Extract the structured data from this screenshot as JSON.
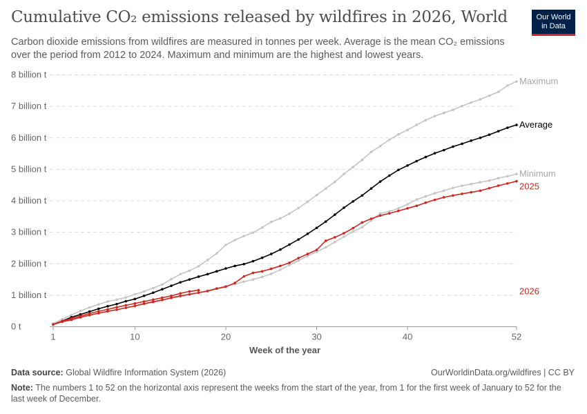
{
  "title": "Cumulative CO₂ emissions released by wildfires in 2026, World",
  "subtitle": "Carbon dioxide emissions from wildfires are measured in tonnes per week. Average is the mean CO₂ emissions over the period from 2012 to 2024. Maximum and minimum are the highest and lowest years.",
  "logo": {
    "line1": "Our World",
    "line2": "in Data",
    "bg": "#002147",
    "accent": "#ce261e"
  },
  "footer": {
    "source_label": "Data source:",
    "source": "Global Wildfire Information System (2026)",
    "url": "OurWorldinData.org/wildfires | CC BY",
    "note_label": "Note:",
    "note": "The numbers 1 to 52 on the horizontal axis represent the weeks from the start of the year, from 1 for the first week of January to 52 for the last week of December."
  },
  "chart_data": {
    "type": "line",
    "xlabel": "Week of the year",
    "ylabel": "",
    "xlim": [
      1,
      52
    ],
    "ylim": [
      0,
      8
    ],
    "x_ticks": [
      "1",
      "10",
      "20",
      "30",
      "40",
      "52"
    ],
    "y_ticks": [
      "0 t",
      "1 billion t",
      "2 billion t",
      "3 billion t",
      "4 billion t",
      "5 billion t",
      "6 billion t",
      "7 billion t",
      "8 billion t"
    ],
    "grid": "horizontal dashed",
    "units": "billion t",
    "series": [
      {
        "name": "Maximum",
        "color": "#c4c4c4",
        "values": [
          0.1,
          0.24,
          0.37,
          0.5,
          0.61,
          0.71,
          0.8,
          0.86,
          0.93,
          1.03,
          1.12,
          1.23,
          1.34,
          1.51,
          1.67,
          1.78,
          1.92,
          2.12,
          2.33,
          2.6,
          2.75,
          2.88,
          2.99,
          3.15,
          3.33,
          3.44,
          3.59,
          3.77,
          3.97,
          4.18,
          4.39,
          4.6,
          4.85,
          5.07,
          5.3,
          5.55,
          5.74,
          5.94,
          6.11,
          6.25,
          6.41,
          6.56,
          6.69,
          6.79,
          6.89,
          7.01,
          7.12,
          7.22,
          7.34,
          7.46,
          7.66,
          7.79
        ]
      },
      {
        "name": "Minimum",
        "color": "#c4c4c4",
        "values": [
          0.08,
          0.15,
          0.22,
          0.29,
          0.36,
          0.42,
          0.48,
          0.54,
          0.6,
          0.66,
          0.72,
          0.78,
          0.84,
          0.9,
          0.96,
          1.02,
          1.08,
          1.15,
          1.22,
          1.29,
          1.35,
          1.43,
          1.5,
          1.58,
          1.68,
          1.81,
          1.96,
          2.1,
          2.25,
          2.38,
          2.52,
          2.69,
          2.86,
          3.02,
          3.16,
          3.37,
          3.6,
          3.66,
          3.76,
          3.89,
          4.04,
          4.14,
          4.24,
          4.32,
          4.41,
          4.48,
          4.53,
          4.59,
          4.64,
          4.72,
          4.78,
          4.85
        ]
      },
      {
        "name": "Average",
        "color": "#000000",
        "values": [
          0.07,
          0.18,
          0.3,
          0.39,
          0.48,
          0.57,
          0.65,
          0.72,
          0.81,
          0.88,
          0.98,
          1.08,
          1.19,
          1.3,
          1.41,
          1.5,
          1.59,
          1.67,
          1.76,
          1.85,
          1.93,
          1.99,
          2.08,
          2.19,
          2.31,
          2.45,
          2.61,
          2.77,
          2.95,
          3.14,
          3.34,
          3.56,
          3.78,
          3.98,
          4.17,
          4.39,
          4.61,
          4.8,
          4.98,
          5.12,
          5.26,
          5.39,
          5.51,
          5.61,
          5.72,
          5.81,
          5.91,
          6.0,
          6.1,
          6.21,
          6.32,
          6.41
        ]
      },
      {
        "name": "2025",
        "color": "#ce261e",
        "values": [
          0.07,
          0.16,
          0.22,
          0.3,
          0.37,
          0.43,
          0.49,
          0.54,
          0.6,
          0.66,
          0.73,
          0.79,
          0.85,
          0.92,
          0.98,
          1.03,
          1.08,
          1.13,
          1.21,
          1.27,
          1.39,
          1.6,
          1.71,
          1.76,
          1.84,
          1.93,
          2.03,
          2.18,
          2.31,
          2.44,
          2.73,
          2.84,
          2.97,
          3.13,
          3.31,
          3.43,
          3.53,
          3.6,
          3.68,
          3.76,
          3.84,
          3.94,
          4.03,
          4.11,
          4.17,
          4.22,
          4.27,
          4.32,
          4.4,
          4.48,
          4.55,
          4.62
        ]
      },
      {
        "name": "2026",
        "color": "#ce261e",
        "values": [
          0.07,
          0.18,
          0.26,
          0.34,
          0.42,
          0.49,
          0.55,
          0.62,
          0.68,
          0.74,
          0.8,
          0.86,
          0.92,
          0.98,
          1.06,
          1.12,
          1.16
        ]
      }
    ]
  }
}
